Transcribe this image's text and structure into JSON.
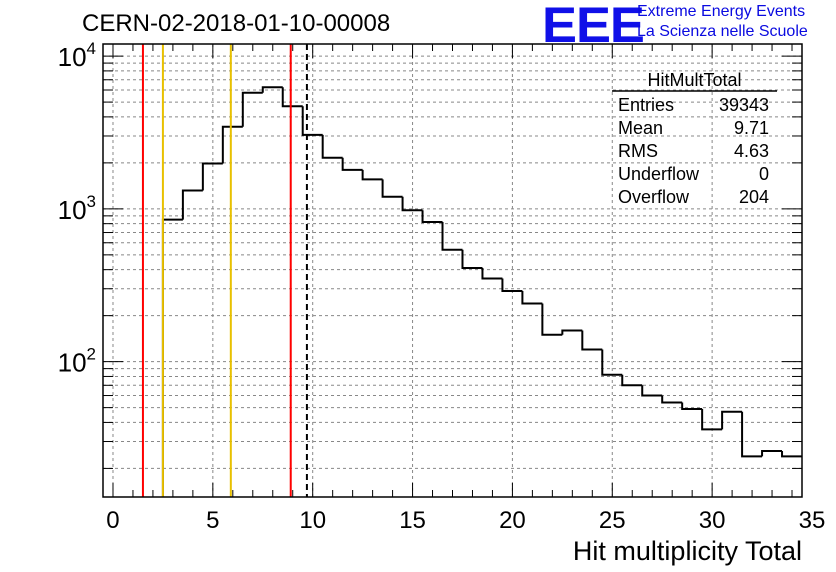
{
  "header": {
    "title": "CERN-02-2018-01-10-00008",
    "logo_text": "EEE",
    "org_line1": "Extreme Energy Events",
    "org_line2": "La Scienza nelle Scuole"
  },
  "chart_data": {
    "type": "histogram",
    "xlabel": "Hit multiplicity Total",
    "ylabel": "",
    "xlim": [
      -0.5,
      34.5
    ],
    "ylim": [
      13,
      12000
    ],
    "ylog": true,
    "grid": true,
    "x_ticks": [
      0,
      5,
      10,
      15,
      20,
      25,
      30,
      35
    ],
    "y_ticks": [
      {
        "exp": "2",
        "value": 100
      },
      {
        "exp": "3",
        "value": 1000
      },
      {
        "exp": "4",
        "value": 10000
      }
    ],
    "bin_width": 1,
    "bin_start": 2.5,
    "values": [
      850,
      1320,
      1980,
      3450,
      5750,
      6250,
      4700,
      3050,
      2160,
      1800,
      1560,
      1200,
      980,
      820,
      540,
      410,
      350,
      290,
      240,
      150,
      160,
      120,
      82,
      70,
      60,
      54,
      49,
      36,
      47,
      24,
      26,
      24
    ],
    "vlines": [
      {
        "x": 1.5,
        "color": "#ff0000",
        "style": "solid"
      },
      {
        "x": 2.5,
        "color": "#e8c000",
        "style": "solid"
      },
      {
        "x": 5.9,
        "color": "#e8c000",
        "style": "solid"
      },
      {
        "x": 8.9,
        "color": "#ff0000",
        "style": "solid"
      },
      {
        "x": 9.71,
        "color": "#000000",
        "style": "dashed"
      }
    ],
    "stats": {
      "title": "HitMultTotal",
      "rows": [
        {
          "label": "Entries",
          "value": "39343"
        },
        {
          "label": "Mean",
          "value": "9.71"
        },
        {
          "label": "RMS",
          "value": "4.63"
        },
        {
          "label": "Underflow",
          "value": "0"
        },
        {
          "label": "Overflow",
          "value": "204"
        }
      ]
    }
  }
}
